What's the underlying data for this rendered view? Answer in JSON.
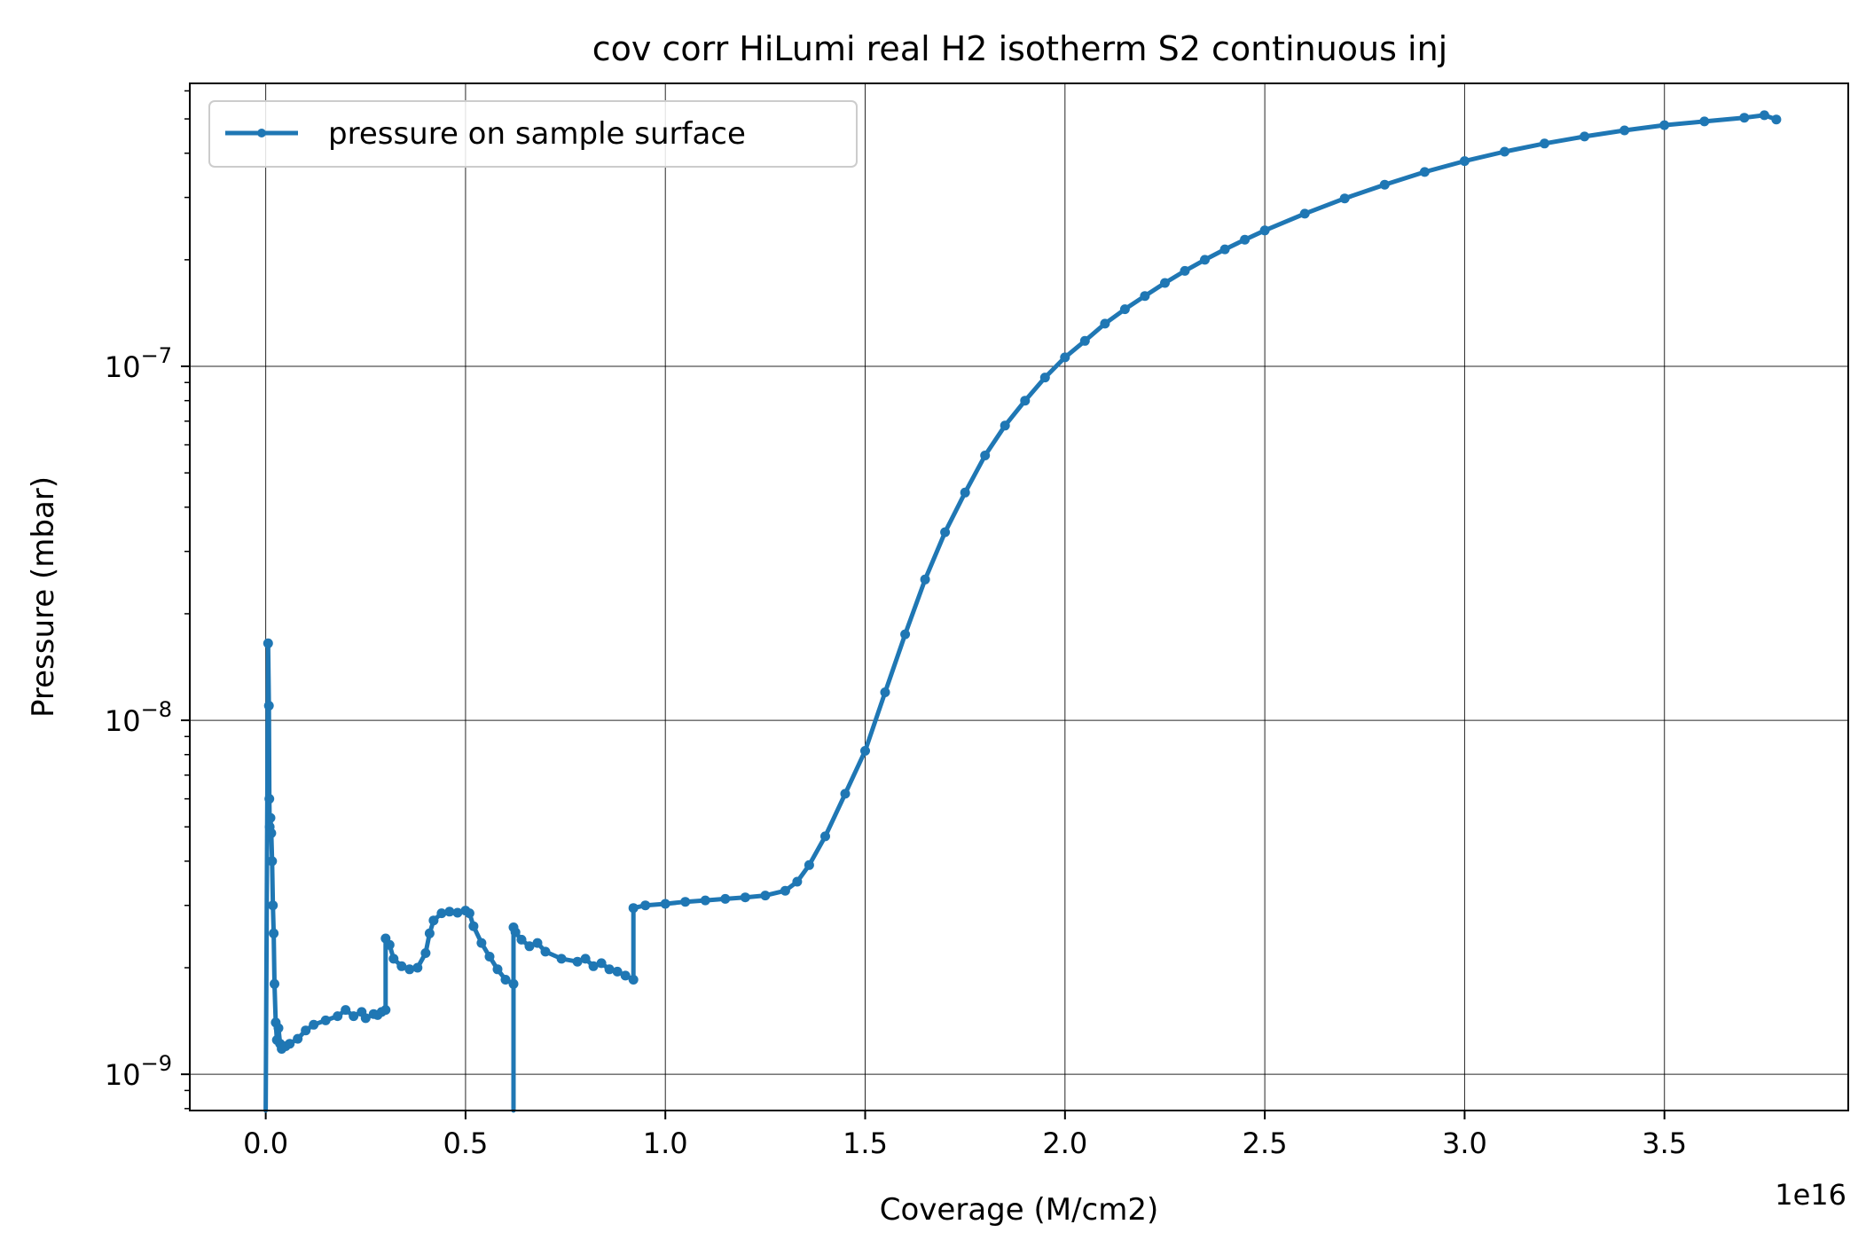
{
  "chart_data": {
    "type": "line",
    "title": "cov corr HiLumi real H2 isotherm S2 continuous inj",
    "xlabel": "Coverage (M/cm2)",
    "ylabel": "Pressure (mbar)",
    "x_scale_label": "1e16",
    "x_scale": 1e+16,
    "xlim": [
      -0.19,
      3.96
    ],
    "ylim": [
      7.9e-10,
      6.3e-07
    ],
    "y_scale": "log",
    "grid": true,
    "legend_position": "top-left",
    "x_ticks": [
      {
        "value": 0.0,
        "label": "0.0"
      },
      {
        "value": 0.5,
        "label": "0.5"
      },
      {
        "value": 1.0,
        "label": "1.0"
      },
      {
        "value": 1.5,
        "label": "1.5"
      },
      {
        "value": 2.0,
        "label": "2.0"
      },
      {
        "value": 2.5,
        "label": "2.5"
      },
      {
        "value": 3.0,
        "label": "3.0"
      },
      {
        "value": 3.5,
        "label": "3.5"
      }
    ],
    "y_ticks": [
      {
        "value": 1e-09,
        "base": "10",
        "exp": "−9"
      },
      {
        "value": 1e-08,
        "base": "10",
        "exp": "−8"
      },
      {
        "value": 1e-07,
        "base": "10",
        "exp": "−7"
      }
    ],
    "series": [
      {
        "name": "pressure on sample surface",
        "color": "#1f77b4",
        "marker": "dot",
        "x": [
          0.0,
          0.006,
          0.008,
          0.009,
          0.01,
          0.012,
          0.014,
          0.016,
          0.018,
          0.02,
          0.022,
          0.025,
          0.028,
          0.032,
          0.036,
          0.04,
          0.05,
          0.06,
          0.08,
          0.1,
          0.12,
          0.15,
          0.18,
          0.2,
          0.22,
          0.24,
          0.25,
          0.27,
          0.28,
          0.29,
          0.3,
          0.3,
          0.31,
          0.32,
          0.34,
          0.36,
          0.38,
          0.4,
          0.41,
          0.42,
          0.44,
          0.46,
          0.48,
          0.5,
          0.51,
          0.52,
          0.54,
          0.56,
          0.58,
          0.6,
          0.62,
          0.62,
          0.62,
          0.625,
          0.64,
          0.66,
          0.68,
          0.7,
          0.74,
          0.78,
          0.8,
          0.82,
          0.84,
          0.86,
          0.88,
          0.9,
          0.92,
          0.92,
          0.95,
          1.0,
          1.05,
          1.1,
          1.15,
          1.2,
          1.25,
          1.3,
          1.33,
          1.36,
          1.4,
          1.45,
          1.5,
          1.55,
          1.6,
          1.65,
          1.7,
          1.75,
          1.8,
          1.85,
          1.9,
          1.95,
          2.0,
          2.05,
          2.1,
          2.15,
          2.2,
          2.25,
          2.3,
          2.35,
          2.4,
          2.45,
          2.5,
          2.6,
          2.7,
          2.8,
          2.9,
          3.0,
          3.1,
          3.2,
          3.3,
          3.4,
          3.5,
          3.6,
          3.7,
          3.75,
          3.78
        ],
        "y": [
          7e-10,
          1.65e-08,
          1.1e-08,
          6e-09,
          5e-09,
          5.3e-09,
          4.8e-09,
          4e-09,
          3e-09,
          2.5e-09,
          1.8e-09,
          1.4e-09,
          1.25e-09,
          1.35e-09,
          1.22e-09,
          1.18e-09,
          1.2e-09,
          1.22e-09,
          1.26e-09,
          1.33e-09,
          1.38e-09,
          1.42e-09,
          1.46e-09,
          1.52e-09,
          1.46e-09,
          1.5e-09,
          1.44e-09,
          1.48e-09,
          1.47e-09,
          1.5e-09,
          1.52e-09,
          2.42e-09,
          2.32e-09,
          2.12e-09,
          2.02e-09,
          1.98e-09,
          2e-09,
          2.2e-09,
          2.5e-09,
          2.72e-09,
          2.85e-09,
          2.88e-09,
          2.86e-09,
          2.9e-09,
          2.85e-09,
          2.62e-09,
          2.35e-09,
          2.15e-09,
          1.98e-09,
          1.85e-09,
          1.8e-09,
          6.5e-10,
          2.6e-09,
          2.52e-09,
          2.4e-09,
          2.3e-09,
          2.35e-09,
          2.22e-09,
          2.12e-09,
          2.08e-09,
          2.12e-09,
          2.02e-09,
          2.06e-09,
          1.98e-09,
          1.95e-09,
          1.9e-09,
          1.85e-09,
          2.95e-09,
          3e-09,
          3.03e-09,
          3.07e-09,
          3.1e-09,
          3.13e-09,
          3.16e-09,
          3.2e-09,
          3.3e-09,
          3.5e-09,
          3.9e-09,
          4.7e-09,
          6.2e-09,
          8.2e-09,
          1.2e-08,
          1.75e-08,
          2.5e-08,
          3.4e-08,
          4.4e-08,
          5.6e-08,
          6.8e-08,
          8e-08,
          9.3e-08,
          1.06e-07,
          1.18e-07,
          1.32e-07,
          1.45e-07,
          1.58e-07,
          1.72e-07,
          1.86e-07,
          2e-07,
          2.14e-07,
          2.28e-07,
          2.42e-07,
          2.7e-07,
          2.98e-07,
          3.26e-07,
          3.54e-07,
          3.8e-07,
          4.04e-07,
          4.26e-07,
          4.46e-07,
          4.64e-07,
          4.8e-07,
          4.92e-07,
          5.04e-07,
          5.12e-07,
          4.98e-07
        ]
      }
    ]
  }
}
